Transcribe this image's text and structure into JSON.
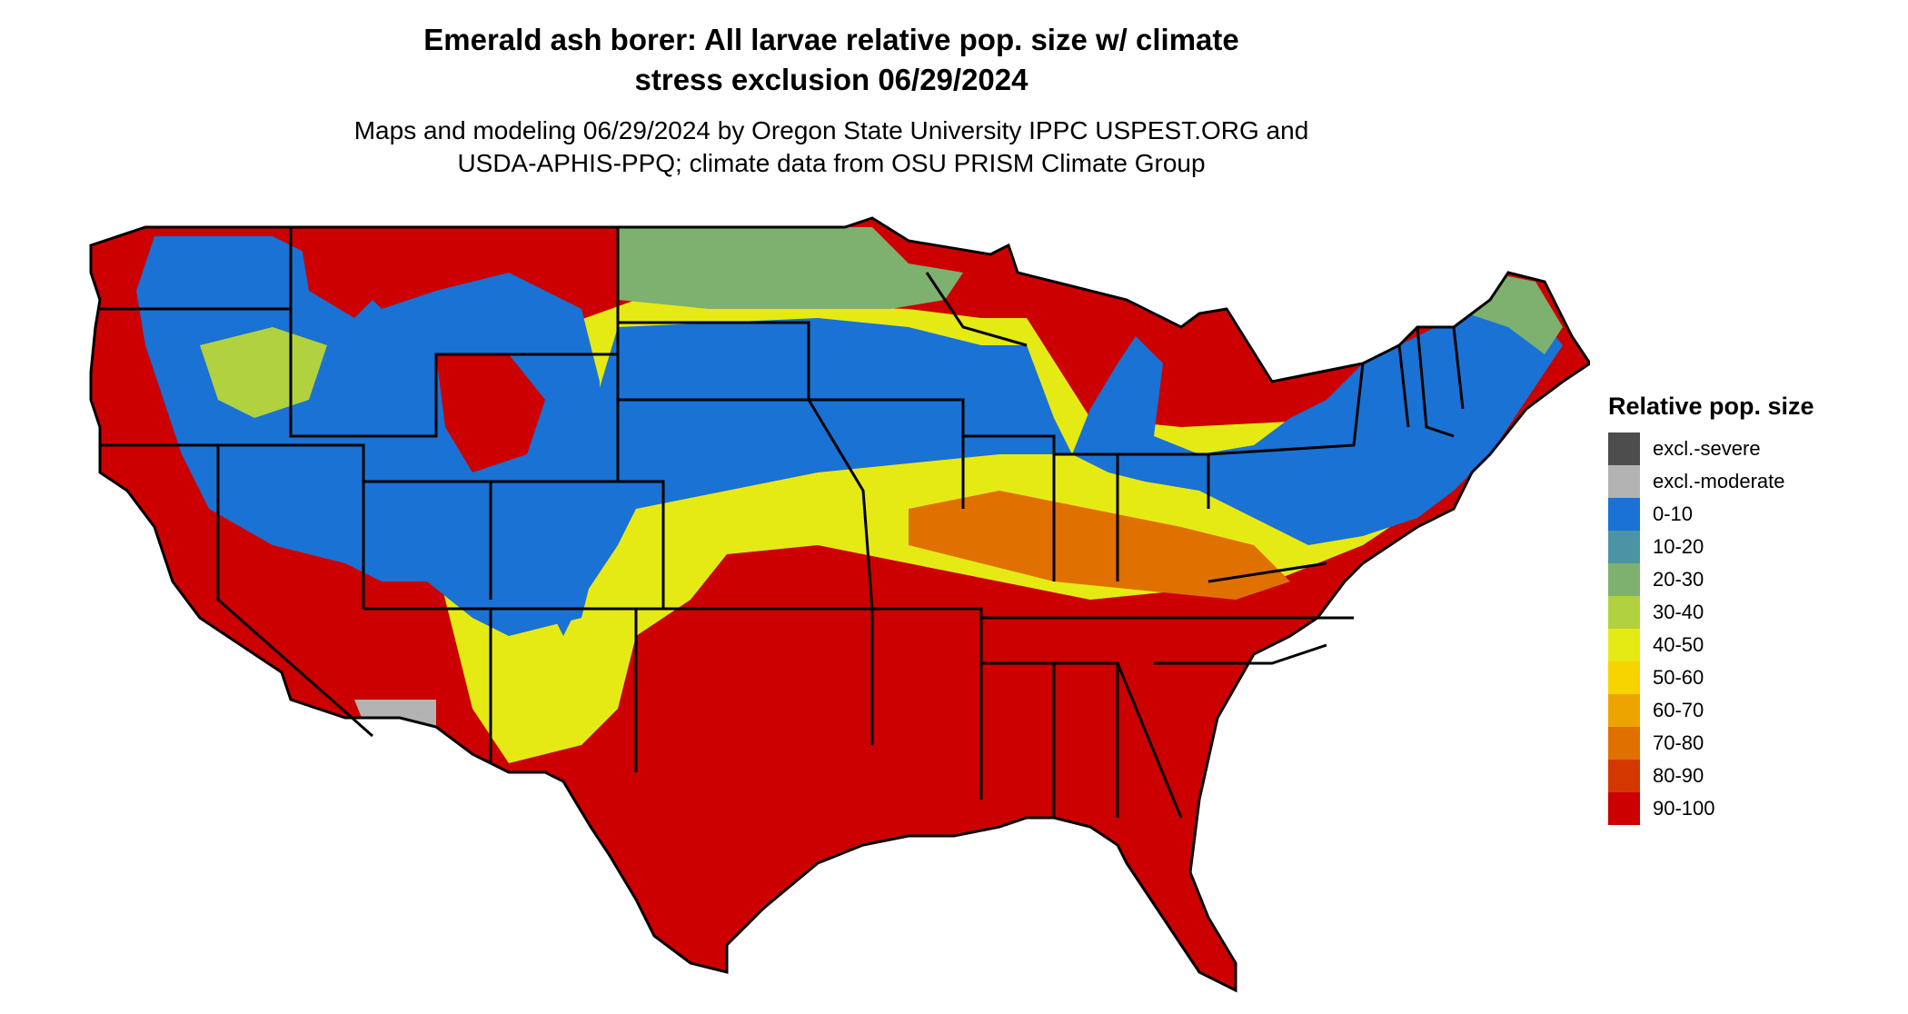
{
  "title_line1": "Emerald ash borer: All larvae relative pop. size w/ climate",
  "title_line2": "stress exclusion 06/29/2024",
  "subtitle_line1": "Maps and modeling 06/29/2024 by Oregon State University IPPC USPEST.ORG and",
  "subtitle_line2": "USDA-APHIS-PPQ; climate data from OSU PRISM Climate Group",
  "legend": {
    "title": "Relative pop. size",
    "items": [
      {
        "label": "excl.-severe",
        "color": "#4d4d4d"
      },
      {
        "label": "excl.-moderate",
        "color": "#b3b3b3"
      },
      {
        "label": "0-10",
        "color": "#1a72d4"
      },
      {
        "label": "10-20",
        "color": "#4d93a6"
      },
      {
        "label": "20-30",
        "color": "#7eb06f"
      },
      {
        "label": "30-40",
        "color": "#b2d13f"
      },
      {
        "label": "40-50",
        "color": "#e6ea14"
      },
      {
        "label": "50-60",
        "color": "#f7d400"
      },
      {
        "label": "60-70",
        "color": "#eda400"
      },
      {
        "label": "70-80",
        "color": "#e07000"
      },
      {
        "label": "80-90",
        "color": "#d43800"
      },
      {
        "label": "90-100",
        "color": "#cc0000"
      }
    ]
  }
}
